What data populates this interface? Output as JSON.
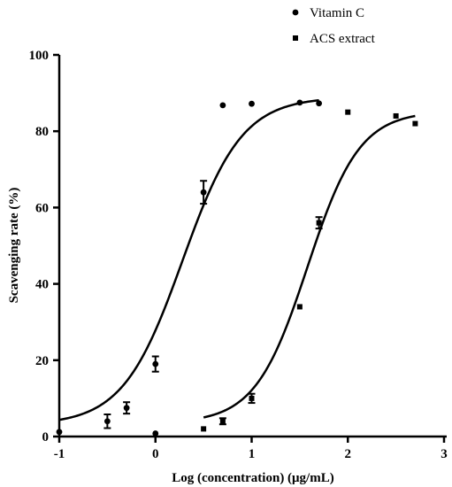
{
  "chart_data": {
    "type": "scatter",
    "title": "",
    "xlabel": "Log (concentration) (μg/mL)",
    "ylabel": "Scavenging rate (%)",
    "xlim": [
      -1,
      3
    ],
    "ylim": [
      0,
      100
    ],
    "x_ticks": [
      "-1",
      "0",
      "1",
      "2",
      "3"
    ],
    "y_ticks": [
      "0",
      "20",
      "40",
      "60",
      "80",
      "100"
    ],
    "grid": false,
    "legend": "top-right",
    "series": [
      {
        "name": "Vitamin C",
        "marker": "circle",
        "x": [
          -1.0,
          -0.5,
          -0.3,
          0.0,
          0.0,
          0.5,
          0.7,
          1.0,
          1.5,
          1.7
        ],
        "y": [
          1.2,
          4.0,
          7.5,
          19.0,
          0.8,
          64.0,
          86.8,
          87.2,
          87.5,
          87.3
        ],
        "error": [
          0,
          1.8,
          1.5,
          2.0,
          0,
          3.0,
          0,
          0,
          0,
          0
        ],
        "fit": {
          "bottom": 3.0,
          "top": 89.0,
          "logEC50": 0.28,
          "hill": 1.4
        }
      },
      {
        "name": "ACS extract",
        "marker": "square",
        "x": [
          0.5,
          0.7,
          1.0,
          1.5,
          1.7,
          2.0,
          2.5,
          2.7
        ],
        "y": [
          2.0,
          4.0,
          10.0,
          34.0,
          56.0,
          85.0,
          84.0,
          82.0
        ],
        "error": [
          0,
          0.8,
          1.2,
          0,
          1.5,
          0,
          0,
          0
        ],
        "fit": {
          "bottom": 3.5,
          "top": 85.3,
          "logEC50": 1.58,
          "hill": 1.6
        }
      }
    ]
  }
}
